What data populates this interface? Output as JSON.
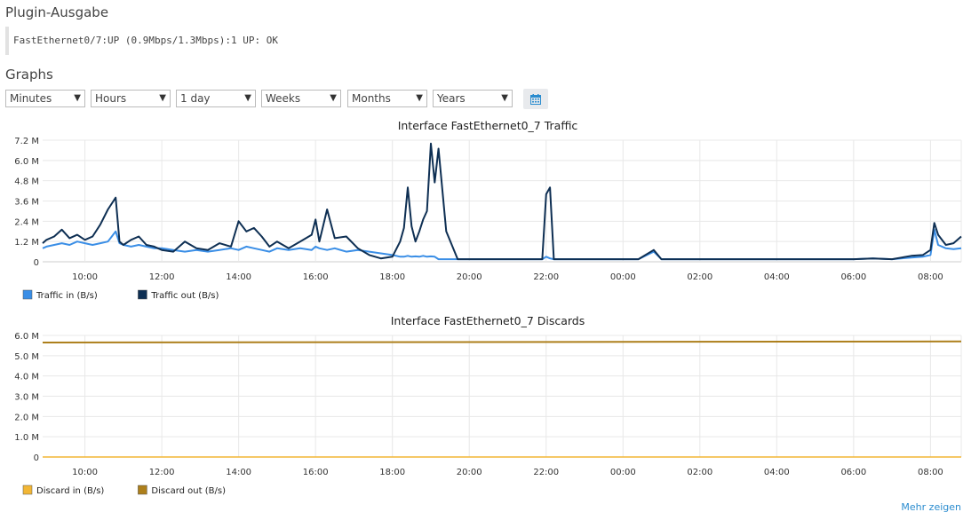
{
  "plugin": {
    "heading": "Plugin-Ausgabe",
    "output": "FastEthernet0/7:UP (0.9Mbps/1.3Mbps):1 UP: OK"
  },
  "graphs": {
    "heading": "Graphs",
    "selects": [
      {
        "name": "minutes",
        "value": "Minutes"
      },
      {
        "name": "hours",
        "value": "Hours"
      },
      {
        "name": "day",
        "value": "1 day"
      },
      {
        "name": "weeks",
        "value": "Weeks"
      },
      {
        "name": "months",
        "value": "Months"
      },
      {
        "name": "years",
        "value": "Years"
      }
    ],
    "calendar_icon": "calendar-icon",
    "more_link": "Mehr zeigen"
  },
  "colors": {
    "traffic_in": "#3a8ee6",
    "traffic_out": "#0e2f53",
    "discard_in": "#f2b635",
    "discard_out": "#ad7f1b",
    "grid": "#e8e8e8"
  },
  "chart_data": [
    {
      "type": "line",
      "title": "Interface FastEthernet0_7 Traffic",
      "xlabel": "",
      "ylabel": "",
      "x_ticks": [
        "10:00",
        "12:00",
        "14:00",
        "16:00",
        "18:00",
        "20:00",
        "22:00",
        "00:00",
        "02:00",
        "04:00",
        "06:00",
        "08:00"
      ],
      "y_ticks": [
        "0",
        "1.2 M",
        "2.4 M",
        "3.6 M",
        "4.8 M",
        "6.0 M",
        "7.2 M"
      ],
      "ylim": [
        0,
        7200000
      ],
      "x_hours": [
        8.9,
        9.0,
        9.2,
        9.4,
        9.6,
        9.8,
        10.0,
        10.2,
        10.4,
        10.6,
        10.8,
        10.9,
        11.0,
        11.2,
        11.4,
        11.6,
        11.8,
        12.0,
        12.3,
        12.6,
        12.9,
        13.2,
        13.5,
        13.8,
        14.0,
        14.2,
        14.4,
        14.6,
        14.8,
        15.0,
        15.3,
        15.6,
        15.9,
        16.0,
        16.1,
        16.3,
        16.5,
        16.8,
        17.1,
        17.4,
        17.7,
        18.0,
        18.2,
        18.3,
        18.4,
        18.5,
        18.6,
        18.7,
        18.8,
        18.9,
        19.0,
        19.1,
        19.2,
        19.4,
        19.7,
        20.0,
        20.5,
        21.0,
        21.5,
        21.9,
        22.0,
        22.1,
        22.2,
        22.5,
        23.0,
        23.5,
        24.0,
        24.4,
        24.8,
        25.0,
        25.2,
        25.5,
        26.0,
        26.5,
        27.0,
        27.5,
        28.0,
        28.5,
        29.0,
        29.5,
        30.0,
        30.5,
        31.0,
        31.5,
        31.8,
        32.0,
        32.1,
        32.2,
        32.4,
        32.6,
        32.8
      ],
      "x_ticks_hours": [
        10,
        12,
        14,
        16,
        18,
        20,
        22,
        24,
        26,
        28,
        30,
        32
      ],
      "series": [
        {
          "name": "Traffic in (B/s)",
          "values": [
            800000,
            900000,
            1000000,
            1100000,
            1000000,
            1200000,
            1100000,
            1000000,
            1100000,
            1200000,
            1800000,
            1100000,
            1000000,
            900000,
            1000000,
            900000,
            800000,
            800000,
            700000,
            600000,
            700000,
            600000,
            700000,
            800000,
            700000,
            900000,
            800000,
            700000,
            600000,
            800000,
            700000,
            800000,
            700000,
            900000,
            800000,
            700000,
            800000,
            600000,
            700000,
            600000,
            500000,
            400000,
            300000,
            300000,
            350000,
            300000,
            320000,
            300000,
            350000,
            300000,
            320000,
            300000,
            150000,
            150000,
            150000,
            150000,
            150000,
            150000,
            150000,
            150000,
            300000,
            200000,
            150000,
            150000,
            150000,
            150000,
            150000,
            150000,
            600000,
            150000,
            150000,
            150000,
            150000,
            150000,
            150000,
            150000,
            150000,
            150000,
            150000,
            150000,
            150000,
            200000,
            150000,
            250000,
            300000,
            400000,
            1900000,
            1000000,
            800000,
            750000,
            800000
          ]
        },
        {
          "name": "Traffic out (B/s)",
          "values": [
            1100000,
            1300000,
            1500000,
            1900000,
            1400000,
            1600000,
            1300000,
            1500000,
            2200000,
            3100000,
            3800000,
            1200000,
            1000000,
            1300000,
            1500000,
            1000000,
            900000,
            700000,
            600000,
            1200000,
            800000,
            700000,
            1100000,
            900000,
            2400000,
            1800000,
            2000000,
            1500000,
            900000,
            1200000,
            800000,
            1200000,
            1600000,
            2500000,
            1200000,
            3100000,
            1400000,
            1500000,
            800000,
            400000,
            200000,
            300000,
            1200000,
            2000000,
            4400000,
            2100000,
            1200000,
            1800000,
            2500000,
            3000000,
            7000000,
            4700000,
            6700000,
            1800000,
            150000,
            150000,
            150000,
            150000,
            150000,
            150000,
            4000000,
            4400000,
            150000,
            150000,
            150000,
            150000,
            150000,
            150000,
            700000,
            150000,
            150000,
            150000,
            150000,
            150000,
            150000,
            150000,
            150000,
            150000,
            150000,
            150000,
            150000,
            200000,
            150000,
            350000,
            400000,
            700000,
            2300000,
            1600000,
            1000000,
            1100000,
            1500000
          ]
        }
      ]
    },
    {
      "type": "line",
      "title": "Interface FastEthernet0_7 Discards",
      "xlabel": "",
      "ylabel": "",
      "x_ticks": [
        "10:00",
        "12:00",
        "14:00",
        "16:00",
        "18:00",
        "20:00",
        "22:00",
        "00:00",
        "02:00",
        "04:00",
        "06:00",
        "08:00"
      ],
      "y_ticks": [
        "0",
        "1.0 M",
        "2.0 M",
        "3.0 M",
        "4.0 M",
        "5.0 M",
        "6.0 M"
      ],
      "ylim": [
        0,
        6000000
      ],
      "x_hours": [
        8.9,
        32.8
      ],
      "x_ticks_hours": [
        10,
        12,
        14,
        16,
        18,
        20,
        22,
        24,
        26,
        28,
        30,
        32
      ],
      "series": [
        {
          "name": "Discard in (B/s)",
          "values": [
            0,
            0
          ]
        },
        {
          "name": "Discard out (B/s)",
          "values": [
            5650000,
            5700000
          ]
        }
      ]
    }
  ]
}
